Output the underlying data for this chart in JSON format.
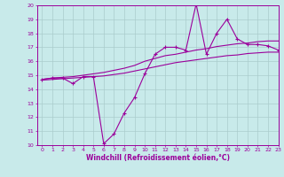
{
  "title": "",
  "xlabel": "Windchill (Refroidissement éolien,°C)",
  "x_values": [
    0,
    1,
    2,
    3,
    4,
    5,
    6,
    7,
    8,
    9,
    10,
    11,
    12,
    13,
    14,
    15,
    16,
    17,
    18,
    19,
    20,
    21,
    22,
    23
  ],
  "y_main": [
    14.7,
    14.8,
    14.8,
    14.4,
    14.9,
    14.9,
    10.1,
    10.8,
    12.3,
    13.4,
    15.1,
    16.5,
    17.0,
    17.0,
    16.8,
    20.1,
    16.5,
    18.0,
    19.0,
    17.6,
    17.2,
    17.2,
    17.1,
    16.8
  ],
  "y_upper": [
    14.7,
    14.8,
    14.85,
    14.9,
    15.0,
    15.1,
    15.2,
    15.35,
    15.5,
    15.7,
    16.0,
    16.2,
    16.4,
    16.5,
    16.65,
    16.8,
    16.9,
    17.05,
    17.15,
    17.25,
    17.3,
    17.4,
    17.45,
    17.45
  ],
  "y_lower": [
    14.65,
    14.7,
    14.75,
    14.8,
    14.85,
    14.9,
    14.95,
    15.05,
    15.15,
    15.3,
    15.45,
    15.6,
    15.75,
    15.9,
    16.0,
    16.1,
    16.2,
    16.3,
    16.4,
    16.45,
    16.55,
    16.6,
    16.65,
    16.65
  ],
  "color_main": "#9b009b",
  "color_envelope": "#9b009b",
  "bg_color": "#c8eaea",
  "grid_color": "#aacccc",
  "ylim": [
    10,
    20
  ],
  "xlim": [
    -0.5,
    23
  ],
  "yticks": [
    10,
    11,
    12,
    13,
    14,
    15,
    16,
    17,
    18,
    19,
    20
  ],
  "xticks": [
    0,
    1,
    2,
    3,
    4,
    5,
    6,
    7,
    8,
    9,
    10,
    11,
    12,
    13,
    14,
    15,
    16,
    17,
    18,
    19,
    20,
    21,
    22,
    23
  ],
  "tick_fontsize": 4.5,
  "xlabel_fontsize": 5.5
}
